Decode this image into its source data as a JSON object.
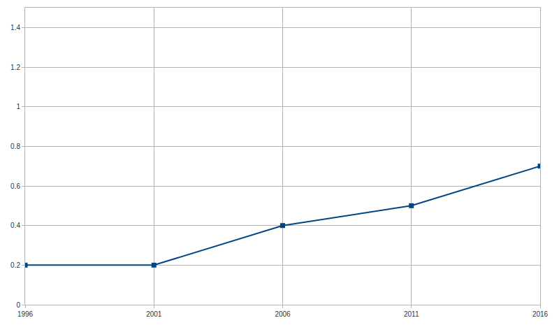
{
  "chart_data": {
    "type": "line",
    "x": [
      1996,
      2001,
      2006,
      2011,
      2016
    ],
    "values": [
      0.2,
      0.2,
      0.4,
      0.5,
      0.7
    ],
    "color": "#004586",
    "marker": "square",
    "xlim": [
      1996,
      2016
    ],
    "xticks": [
      1996,
      2001,
      2006,
      2011,
      2016
    ],
    "ylim": [
      0,
      1.5
    ],
    "yticks": [
      0,
      0.2,
      0.4,
      0.6,
      0.8,
      1,
      1.2,
      1.4
    ],
    "grid": true
  }
}
